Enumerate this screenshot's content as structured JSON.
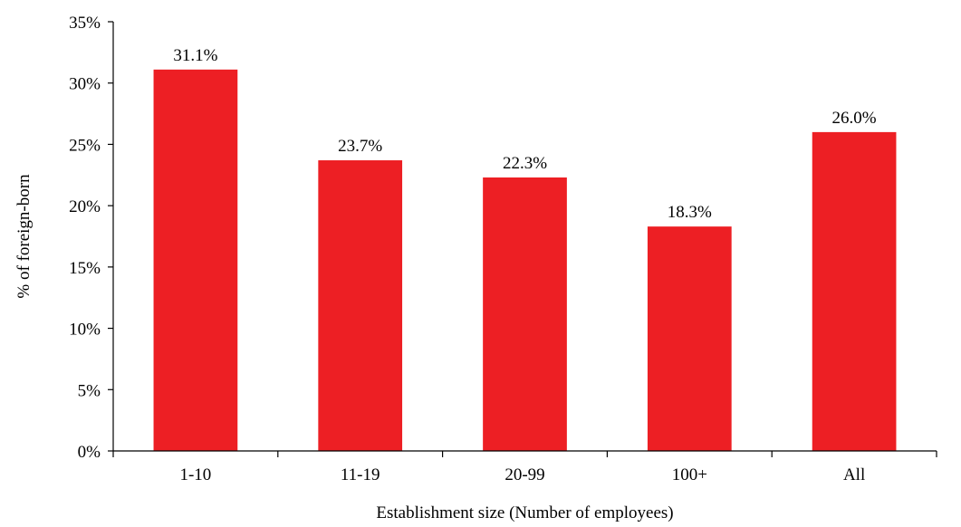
{
  "chart_data": {
    "type": "bar",
    "title": "",
    "xlabel": "Establishment size (Number of employees)",
    "ylabel": "% of foreign-born",
    "categories": [
      "1-10",
      "11-19",
      "20-99",
      "100+",
      "All"
    ],
    "values": [
      31.1,
      23.7,
      22.3,
      18.3,
      26.0
    ],
    "data_labels": [
      "31.1%",
      "23.7%",
      "22.3%",
      "18.3%",
      "26.0%"
    ],
    "ylim": [
      0,
      35
    ],
    "yticks": [
      0,
      5,
      10,
      15,
      20,
      25,
      30,
      35
    ],
    "ytick_labels": [
      "0%",
      "5%",
      "10%",
      "15%",
      "20%",
      "25%",
      "30%",
      "35%"
    ],
    "bar_color": "#ed1f24",
    "grid": false,
    "legend": "none"
  }
}
